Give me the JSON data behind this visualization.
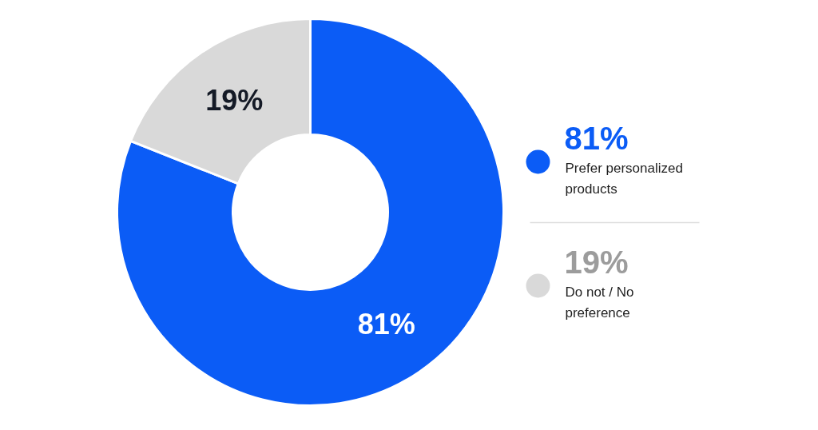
{
  "chart_data": {
    "type": "donut",
    "categories": [
      "Prefer personalized products",
      "Do not / No preference"
    ],
    "values": [
      81,
      19
    ],
    "colors": [
      "#0b5cf6",
      "#d9d9d9"
    ],
    "value_labels": [
      "81%",
      "19%"
    ],
    "legend": "right"
  }
}
